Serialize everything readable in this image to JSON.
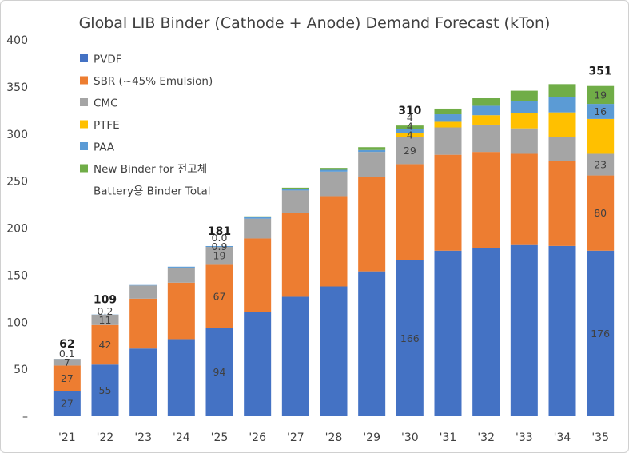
{
  "chart_data": {
    "type": "bar",
    "stacked": true,
    "title": "Global LIB Binder (Cathode + Anode) Demand Forecast (kTon)",
    "categories": [
      "'21",
      "'22",
      "'23",
      "'24",
      "'25",
      "'26",
      "'27",
      "'28",
      "'29",
      "'30",
      "'31",
      "'32",
      "'33",
      "'34",
      "'35"
    ],
    "ylim": [
      0,
      400
    ],
    "yticks": [
      "–",
      "50",
      "100",
      "150",
      "200",
      "250",
      "300",
      "350",
      "400"
    ],
    "legend_placement": "top-left",
    "series": [
      {
        "name": "PVDF",
        "color": "#4472C4",
        "values": [
          27,
          55,
          72,
          82,
          94,
          111,
          127,
          138,
          154,
          166,
          176,
          179,
          182,
          181,
          176
        ],
        "labels": [
          "27",
          "55",
          "",
          "",
          "94",
          "",
          "",
          "",
          "",
          "166",
          "",
          "",
          "",
          "",
          "176"
        ]
      },
      {
        "name": "SBR (~45% Emulsion)",
        "color": "#ED7D31",
        "values": [
          27,
          42,
          53,
          60,
          67,
          78,
          89,
          96,
          100,
          102,
          102,
          102,
          97,
          90,
          80
        ],
        "labels": [
          "27",
          "42",
          "",
          "",
          "67",
          "",
          "",
          "",
          "",
          "",
          "",
          "",
          "",
          "",
          "80"
        ]
      },
      {
        "name": "CMC",
        "color": "#A5A5A5",
        "values": [
          7,
          11,
          14,
          16,
          19,
          21,
          24,
          26,
          27,
          29,
          29,
          29,
          27,
          26,
          23
        ],
        "labels": [
          "7",
          "11",
          "",
          "",
          "19",
          "",
          "",
          "",
          "",
          "29",
          "",
          "",
          "",
          "",
          "23"
        ]
      },
      {
        "name": "PTFE",
        "color": "#FFC000",
        "values": [
          0,
          0,
          0,
          0,
          0,
          0,
          0,
          0,
          0,
          4,
          6,
          10,
          16,
          26,
          37
        ],
        "labels": [
          "",
          "",
          "",
          "",
          "",
          "",
          "",
          "",
          "",
          "4",
          "",
          "",
          "",
          "",
          ""
        ]
      },
      {
        "name": "PAA",
        "color": "#5B9BD5",
        "values": [
          0.1,
          0.2,
          0.5,
          1,
          0.9,
          1.5,
          2,
          2,
          2,
          4,
          8,
          10,
          13,
          16,
          16
        ],
        "labels": [
          "0.1",
          "0.2",
          "",
          "",
          "0.9",
          "",
          "",
          "",
          "",
          "4",
          "",
          "",
          "",
          "",
          "16"
        ]
      },
      {
        "name": "New Binder for 전고체",
        "color": "#70AD47",
        "values": [
          0,
          0,
          0,
          0,
          0,
          1,
          1,
          2,
          3,
          4,
          6,
          8,
          11,
          14,
          19
        ],
        "labels": [
          "",
          "",
          "",
          "",
          "0.0",
          "",
          "",
          "",
          "",
          "4",
          "",
          "",
          "",
          "",
          "19"
        ]
      }
    ],
    "totals_series_name": "Battery용 Binder Total",
    "totals": [
      "62",
      "109",
      "",
      "",
      "181",
      "",
      "",
      "",
      "",
      "310",
      "",
      "",
      "",
      "",
      "351"
    ]
  }
}
